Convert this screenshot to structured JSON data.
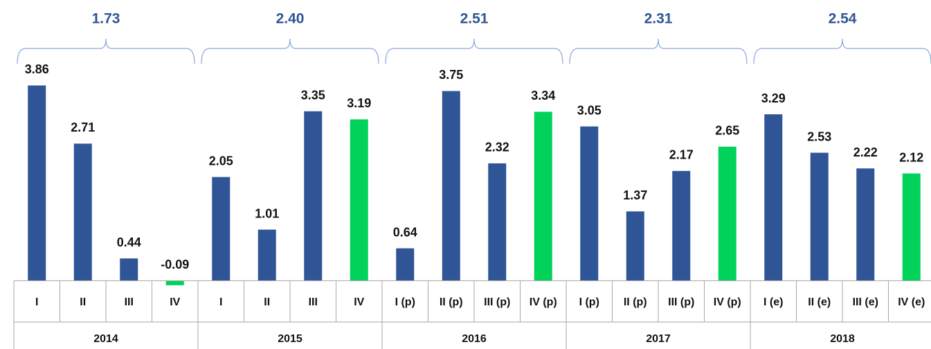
{
  "chart_data": {
    "type": "bar",
    "categories": [
      "I",
      "II",
      "III",
      "IV",
      "I",
      "II",
      "III",
      "IV",
      "I (p)",
      "II (p)",
      "III (p)",
      "IV (p)",
      "I (p)",
      "II (p)",
      "III (p)",
      "IV (p)",
      "I (e)",
      "II (e)",
      "III (e)",
      "IV (e)"
    ],
    "values": [
      3.86,
      2.71,
      0.44,
      -0.09,
      2.05,
      1.01,
      3.35,
      3.19,
      0.64,
      3.75,
      2.32,
      3.34,
      3.05,
      1.37,
      2.17,
      2.65,
      3.29,
      2.53,
      2.22,
      2.12
    ],
    "colors": [
      "#2f5597",
      "#2f5597",
      "#2f5597",
      "#00d25a",
      "#2f5597",
      "#2f5597",
      "#2f5597",
      "#00d25a",
      "#2f5597",
      "#2f5597",
      "#2f5597",
      "#00d25a",
      "#2f5597",
      "#2f5597",
      "#2f5597",
      "#00d25a",
      "#2f5597",
      "#2f5597",
      "#2f5597",
      "#00d25a"
    ],
    "groups": [
      "2014",
      "2015",
      "2016",
      "2017",
      "2018"
    ],
    "group_values": [
      1.73,
      2.4,
      2.51,
      2.31,
      2.54
    ],
    "group_value_labels": [
      "1.73",
      "2.40",
      "2.51",
      "2.31",
      "2.54"
    ],
    "ylim": [
      -1.2,
      4.4
    ]
  }
}
